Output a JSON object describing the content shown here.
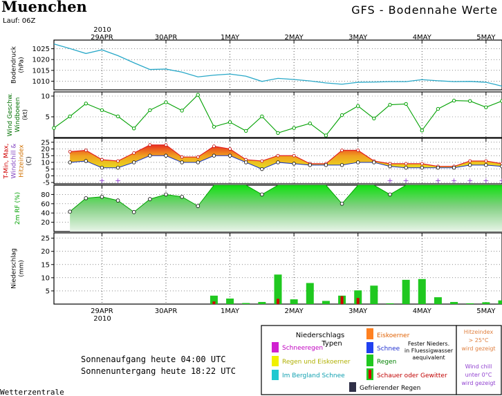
{
  "header": {
    "city": "Muenchen",
    "run": "Lauf: 06Z",
    "title": "GFS - Bodennahe Werte"
  },
  "footer": {
    "source": "Wetterzentrale",
    "sunrise": "Sonnenaufgang heute 04:00 UTC",
    "sunset": "Sonnenuntergang heute 18:22 UTC"
  },
  "axis": {
    "year": "2010",
    "day_labels": [
      "29APR",
      "30APR",
      "1MAY",
      "2MAY",
      "3MAY",
      "4MAY",
      "5MAY"
    ],
    "time_unit": "hours since 28APR 06Z (steps of 6h)"
  },
  "legend": {
    "title": "Niederschlags Typen",
    "schneeregen": "Schneeregen",
    "regen_eis": "Regen und Eiskoerner",
    "berg_schnee": "Im Bergland Schnee",
    "eiskoerner": "Eiskoerner",
    "schnee": "Schnee",
    "regen": "Regen",
    "schauer": "Schauer oder Gewitter",
    "fester": "Fester Nieders. in Fluessigwasser aequivalent",
    "gefrierend": "Gefrierender Regen",
    "hitze": "Hitzeindex > 25°C wird gezeigt",
    "windchill": "Wind chill unter 0°C wird gezeigt"
  },
  "colors": {
    "pressure": "#28a8c8",
    "wind": "#00a000",
    "temp_max": "#e02020",
    "rh_bright": "#10e010",
    "precip": "#20c820",
    "shower": "#d00000",
    "windchill": "#9040d0",
    "schneeregen": "#d020d0",
    "regen_eis": "#f0f000",
    "berg": "#20c8d0",
    "eis": "#ff8020",
    "schnee": "#2040f0",
    "gefrierend": "#303048",
    "hitze": "#e08040"
  },
  "chart_data": [
    {
      "id": "pressure",
      "type": "line",
      "ylabel": "Bodendruck (hPa)",
      "ylim": [
        1006,
        1029
      ],
      "yticks": [
        1010,
        1015,
        1020,
        1025
      ],
      "x": [
        0,
        1,
        2,
        3,
        4,
        5,
        6,
        7,
        8,
        9,
        10,
        11,
        12,
        13,
        14,
        15,
        16,
        17,
        18,
        19,
        20,
        21,
        22,
        23,
        24,
        25,
        26,
        27,
        28
      ],
      "values": [
        1027.2,
        1025.1,
        1022.8,
        1024.5,
        1021.8,
        1018.5,
        1015.4,
        1015.6,
        1014.2,
        1012,
        1012.8,
        1013.3,
        1012.3,
        1009.9,
        1011.3,
        1010.8,
        1010.1,
        1009.2,
        1008.6,
        1009.5,
        1009.6,
        1009.8,
        1009.8,
        1010.7,
        1010.2,
        1009.8,
        1009.9,
        1009.5,
        1007.7
      ]
    },
    {
      "id": "wind",
      "type": "line",
      "ylabel": "Wind Geschw. Windboeen (kt)",
      "ylim": [
        0,
        11
      ],
      "yticks": [
        5,
        10
      ],
      "x": [
        0,
        1,
        2,
        3,
        4,
        5,
        6,
        7,
        8,
        9,
        10,
        11,
        12,
        13,
        14,
        15,
        16,
        17,
        18,
        19,
        20,
        21,
        22,
        23,
        24,
        25,
        26,
        27,
        28
      ],
      "values": [
        2.3,
        5.1,
        8.2,
        6.6,
        5.1,
        2.2,
        6.6,
        8.5,
        6.5,
        10.3,
        2.6,
        3.7,
        1.6,
        5.1,
        1.1,
        2.3,
        3.4,
        0.5,
        5.4,
        7.6,
        4.6,
        7.9,
        8.1,
        1.7,
        6.9,
        8.9,
        8.8,
        7.3,
        8.8
      ]
    },
    {
      "id": "temperature",
      "type": "area",
      "ylabel": "T-Min, Max, Windchill & Hitzeindex (C)",
      "ylim": [
        -6,
        28
      ],
      "yticks": [
        -5,
        0,
        5,
        10,
        15,
        20,
        25
      ],
      "x": [
        1,
        2,
        3,
        4,
        5,
        6,
        7,
        8,
        9,
        10,
        11,
        12,
        13,
        14,
        15,
        16,
        17,
        18,
        19,
        20,
        21,
        22,
        23,
        24,
        25,
        26,
        27,
        28
      ],
      "t_max": [
        18,
        19,
        12,
        11,
        17,
        23,
        23,
        14,
        14,
        22,
        20,
        12,
        11,
        15,
        15,
        9,
        9,
        19,
        19,
        11,
        9,
        9,
        9,
        7,
        7,
        11,
        11,
        9
      ],
      "t_min": [
        10,
        11,
        6,
        6,
        10,
        15,
        15,
        10,
        10,
        15,
        15,
        10,
        5,
        10,
        9,
        8,
        8,
        8,
        10,
        10,
        7,
        6,
        6,
        6,
        6,
        8,
        8,
        7
      ],
      "windchill_x": [
        3,
        4,
        21,
        22,
        24,
        25,
        26,
        27,
        28
      ],
      "windchill": [
        -3.5,
        -3.5,
        -3.5,
        -3.5,
        -3.5,
        -3.5,
        -3.5,
        -3.5,
        -3.5
      ]
    },
    {
      "id": "humidity",
      "type": "area",
      "ylabel": "2m RF (%)",
      "ylim": [
        0,
        100
      ],
      "yticks": [
        20,
        40,
        60,
        80
      ],
      "x": [
        1,
        2,
        3,
        4,
        5,
        6,
        7,
        8,
        9,
        10,
        11,
        12,
        13,
        14,
        15,
        16,
        17,
        18,
        19,
        20,
        21,
        22,
        23,
        24,
        25,
        26,
        27,
        28
      ],
      "values": [
        43,
        72,
        75,
        67,
        42,
        70,
        80,
        75,
        55,
        100,
        100,
        100,
        80,
        100,
        100,
        100,
        100,
        60,
        100,
        100,
        80,
        100,
        100,
        100,
        100,
        100,
        100,
        100
      ]
    },
    {
      "id": "precipitation",
      "type": "bar",
      "ylabel": "Niederschlag (mm)",
      "ylim": [
        0,
        27
      ],
      "yticks": [
        5,
        10,
        15,
        20,
        25
      ],
      "x": [
        10,
        11,
        12,
        13,
        14,
        15,
        16,
        17,
        18,
        19,
        20,
        21,
        22,
        23,
        24,
        25,
        26,
        27,
        28
      ],
      "values": [
        3.2,
        2.1,
        0.4,
        0.8,
        11.2,
        1.8,
        8,
        1.2,
        3.2,
        5.2,
        7,
        0.3,
        9.2,
        9.5,
        2.6,
        0.8,
        0.3,
        0.7,
        1.4
      ],
      "shower_x": [
        10,
        14,
        18,
        19
      ],
      "shower": [
        1,
        2,
        3,
        2.3
      ]
    }
  ]
}
